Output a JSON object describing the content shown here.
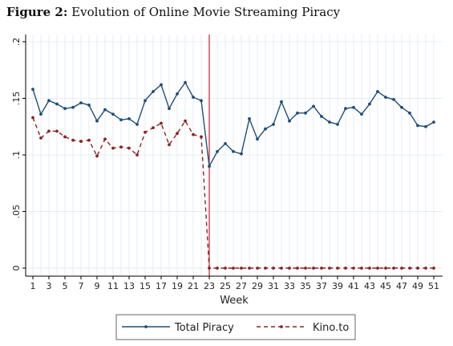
{
  "figure": {
    "label": "Figure 2:",
    "title": "Evolution of Online Movie Streaming Piracy"
  },
  "colors": {
    "total": "#1f4e79",
    "kino": "#8b2323",
    "vline": "#cc1f2e",
    "grid": "#e6eef4"
  },
  "chart_data": {
    "type": "line",
    "title": "Evolution of Online Movie Streaming Piracy",
    "xlabel": "Week",
    "ylabel": "",
    "xlim": [
      1,
      51
    ],
    "ylim": [
      0,
      0.2
    ],
    "x_ticks": [
      1,
      3,
      5,
      7,
      9,
      11,
      13,
      15,
      17,
      19,
      21,
      23,
      25,
      27,
      29,
      31,
      33,
      35,
      37,
      39,
      41,
      43,
      45,
      47,
      49,
      51
    ],
    "y_ticks": [
      0,
      0.05,
      0.1,
      0.15,
      0.2
    ],
    "y_tick_labels": [
      "0",
      ".05",
      ".1",
      ".15",
      ".2"
    ],
    "grid": true,
    "legend_position": "bottom",
    "vertical_line_at": 23,
    "x": [
      1,
      2,
      3,
      4,
      5,
      6,
      7,
      8,
      9,
      10,
      11,
      12,
      13,
      14,
      15,
      16,
      17,
      18,
      19,
      20,
      21,
      22,
      23,
      24,
      25,
      26,
      27,
      28,
      29,
      30,
      31,
      32,
      33,
      34,
      35,
      36,
      37,
      38,
      39,
      40,
      41,
      42,
      43,
      44,
      45,
      46,
      47,
      48,
      49,
      50,
      51
    ],
    "series": [
      {
        "name": "Total Piracy",
        "style": "solid",
        "values": [
          0.158,
          0.136,
          0.148,
          0.145,
          0.141,
          0.142,
          0.146,
          0.144,
          0.13,
          0.14,
          0.136,
          0.131,
          0.132,
          0.127,
          0.148,
          0.156,
          0.162,
          0.141,
          0.154,
          0.164,
          0.151,
          0.148,
          0.09,
          0.103,
          0.11,
          0.103,
          0.101,
          0.132,
          0.114,
          0.123,
          0.127,
          0.147,
          0.13,
          0.137,
          0.137,
          0.143,
          0.134,
          0.129,
          0.127,
          0.141,
          0.142,
          0.136,
          0.145,
          0.156,
          0.151,
          0.149,
          0.142,
          0.137,
          0.126,
          0.125,
          0.129
        ]
      },
      {
        "name": "Kino.to",
        "style": "dashed",
        "values": [
          0.133,
          0.115,
          0.121,
          0.121,
          0.116,
          0.113,
          0.112,
          0.113,
          0.099,
          0.114,
          0.106,
          0.107,
          0.106,
          0.1,
          0.12,
          0.124,
          0.128,
          0.109,
          0.119,
          0.13,
          0.118,
          0.116,
          0.0,
          0.0,
          0.0,
          0.0,
          0.0,
          0.0,
          0.0,
          0.0,
          0.0,
          0.0,
          0.0,
          0.0,
          0.0,
          0.0,
          0.0,
          0.0,
          0.0,
          0.0,
          0.0,
          0.0,
          0.0,
          0.0,
          0.0,
          0.0,
          0.0,
          0.0,
          0.0,
          0.0,
          0.0
        ]
      }
    ]
  }
}
